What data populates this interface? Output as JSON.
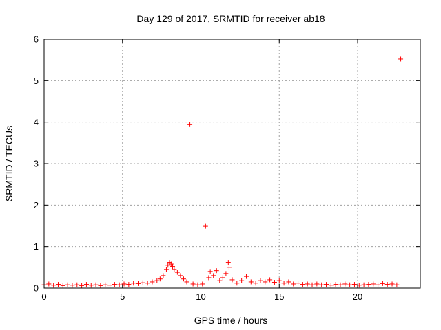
{
  "chart_data": {
    "type": "scatter",
    "title": "Day 129 of 2017, SRMTID for receiver ab18",
    "xlabel": "GPS time / hours",
    "ylabel": "SRMTID / TECUs",
    "xlim": [
      0,
      24
    ],
    "ylim": [
      0,
      6
    ],
    "xticks": [
      0,
      5,
      10,
      15,
      20
    ],
    "yticks": [
      0,
      1,
      2,
      3,
      4,
      5,
      6
    ],
    "grid": true,
    "marker": "plus",
    "marker_color": "#ff0000",
    "series": [
      {
        "points": [
          [
            0.0,
            0.08
          ],
          [
            0.3,
            0.1
          ],
          [
            0.6,
            0.07
          ],
          [
            0.9,
            0.09
          ],
          [
            1.2,
            0.06
          ],
          [
            1.5,
            0.08
          ],
          [
            1.8,
            0.07
          ],
          [
            2.1,
            0.08
          ],
          [
            2.4,
            0.06
          ],
          [
            2.7,
            0.09
          ],
          [
            3.0,
            0.07
          ],
          [
            3.3,
            0.08
          ],
          [
            3.6,
            0.06
          ],
          [
            3.9,
            0.08
          ],
          [
            4.2,
            0.07
          ],
          [
            4.5,
            0.09
          ],
          [
            4.8,
            0.08
          ],
          [
            5.1,
            0.1
          ],
          [
            5.4,
            0.09
          ],
          [
            5.7,
            0.12
          ],
          [
            6.0,
            0.11
          ],
          [
            6.3,
            0.13
          ],
          [
            6.6,
            0.12
          ],
          [
            6.9,
            0.15
          ],
          [
            7.2,
            0.18
          ],
          [
            7.4,
            0.22
          ],
          [
            7.6,
            0.3
          ],
          [
            7.8,
            0.45
          ],
          [
            7.9,
            0.55
          ],
          [
            8.0,
            0.62
          ],
          [
            8.1,
            0.58
          ],
          [
            8.2,
            0.52
          ],
          [
            8.3,
            0.45
          ],
          [
            8.5,
            0.38
          ],
          [
            8.7,
            0.3
          ],
          [
            8.9,
            0.22
          ],
          [
            9.1,
            0.15
          ],
          [
            9.3,
            3.94
          ],
          [
            9.5,
            0.1
          ],
          [
            9.8,
            0.08
          ],
          [
            10.1,
            0.1
          ],
          [
            10.3,
            1.49
          ],
          [
            10.5,
            0.25
          ],
          [
            10.6,
            0.4
          ],
          [
            10.8,
            0.3
          ],
          [
            11.0,
            0.42
          ],
          [
            11.2,
            0.18
          ],
          [
            11.4,
            0.25
          ],
          [
            11.6,
            0.35
          ],
          [
            11.75,
            0.62
          ],
          [
            11.8,
            0.5
          ],
          [
            12.0,
            0.2
          ],
          [
            12.3,
            0.12
          ],
          [
            12.6,
            0.18
          ],
          [
            12.9,
            0.28
          ],
          [
            13.2,
            0.15
          ],
          [
            13.5,
            0.12
          ],
          [
            13.8,
            0.18
          ],
          [
            14.1,
            0.15
          ],
          [
            14.4,
            0.2
          ],
          [
            14.7,
            0.14
          ],
          [
            15.0,
            0.18
          ],
          [
            15.3,
            0.12
          ],
          [
            15.6,
            0.15
          ],
          [
            15.9,
            0.1
          ],
          [
            16.2,
            0.12
          ],
          [
            16.5,
            0.09
          ],
          [
            16.8,
            0.1
          ],
          [
            17.1,
            0.08
          ],
          [
            17.4,
            0.1
          ],
          [
            17.7,
            0.08
          ],
          [
            18.0,
            0.09
          ],
          [
            18.3,
            0.07
          ],
          [
            18.6,
            0.09
          ],
          [
            18.9,
            0.08
          ],
          [
            19.2,
            0.1
          ],
          [
            19.5,
            0.08
          ],
          [
            19.8,
            0.09
          ],
          [
            20.1,
            0.07
          ],
          [
            20.4,
            0.08
          ],
          [
            20.7,
            0.09
          ],
          [
            21.0,
            0.1
          ],
          [
            21.3,
            0.08
          ],
          [
            21.6,
            0.11
          ],
          [
            21.9,
            0.09
          ],
          [
            22.2,
            0.1
          ],
          [
            22.5,
            0.08
          ],
          [
            22.75,
            5.52
          ]
        ]
      }
    ]
  }
}
